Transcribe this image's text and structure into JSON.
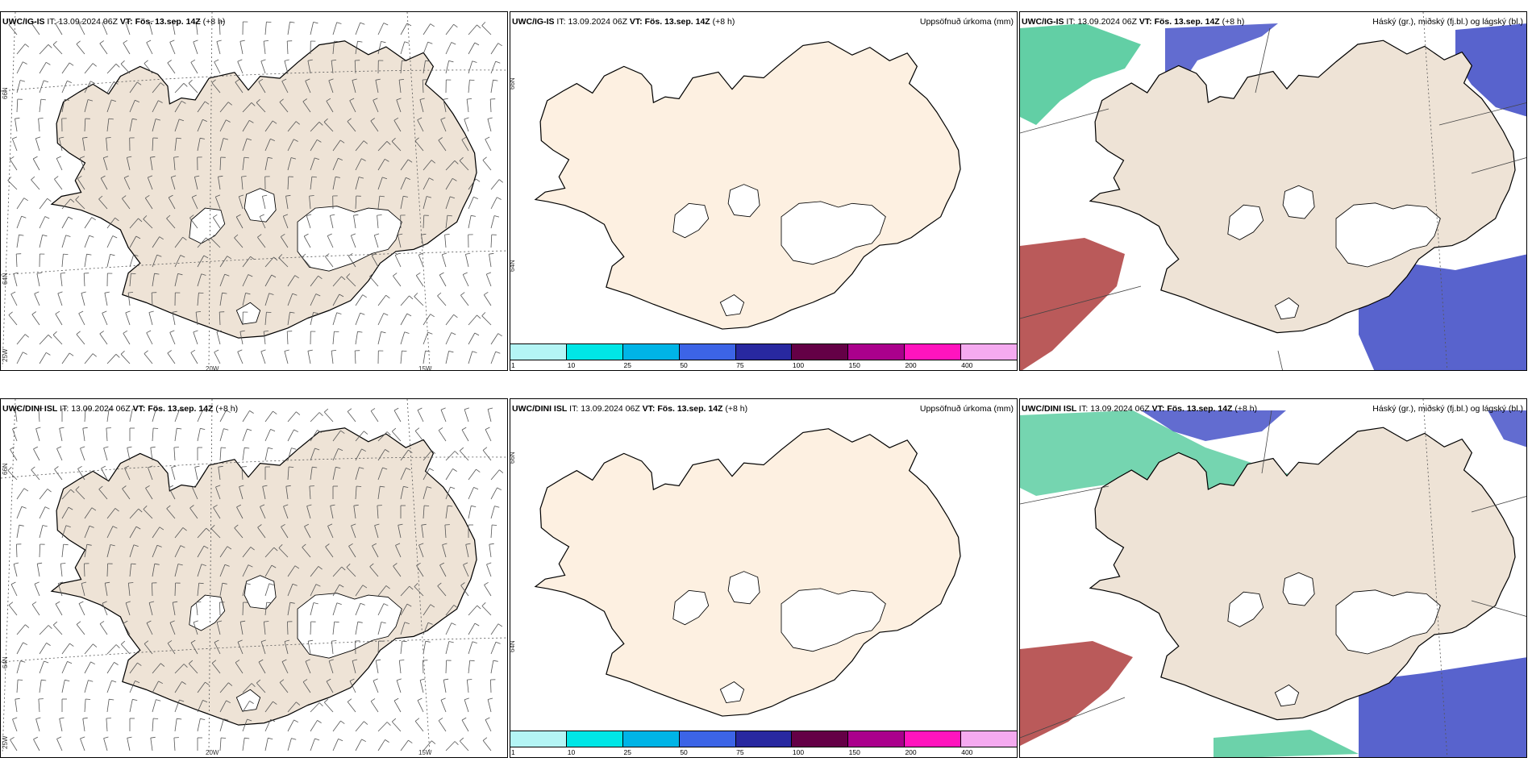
{
  "common": {
    "it_label": "IT:",
    "it_value": "13.09.2024 06Z",
    "vt_label": "VT:",
    "vt_value": "Fös. 13.sep. 14Z",
    "lead": "(+8 h)"
  },
  "models": [
    "UWC/IG-IS",
    "UWC/DINI ISL"
  ],
  "titles": {
    "precip": "Uppsöfnuð úrkoma (mm)",
    "clouds": "Háský (gr.), miðský (fj.bl.) og lágský (bl.)"
  },
  "grid_labels": {
    "lat66": "66N",
    "lat64": "64N",
    "lon25": "25W",
    "lon20": "20W",
    "lon15": "15W"
  },
  "colorbar": {
    "ticks": [
      "1",
      "10",
      "25",
      "50",
      "75",
      "100",
      "150",
      "200",
      "400"
    ],
    "colors": [
      "#b4f5f5",
      "#00e6e6",
      "#00b4e6",
      "#3c64e6",
      "#2828a0",
      "#640046",
      "#aa008c",
      "#ff14be",
      "#f5aaf0"
    ]
  },
  "colors": {
    "land_wind": "#eee3d6",
    "land_precip": "#fdf0e1",
    "high_cloud": "#47c795",
    "mid_cloud": "#b24848",
    "low_cloud": "#4652c8"
  }
}
